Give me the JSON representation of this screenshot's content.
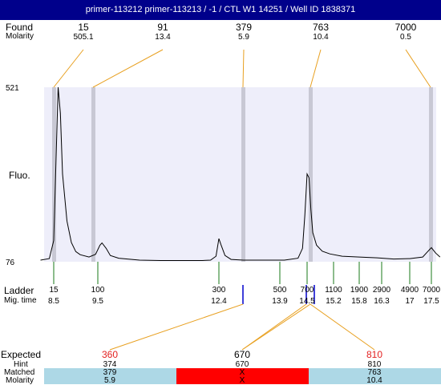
{
  "title": "primer-113212  primer-113213 / -1 / CTL W1 14251  / Well ID 1838371",
  "labels": {
    "found": "Found",
    "molarity": "Molarity",
    "fluo": "Fluo.",
    "ladder": "Ladder",
    "mig_time": "Mig. time",
    "expected": "Expected",
    "hint": "Hint",
    "matched": "Matched",
    "molarity_bottom": "Molarity"
  },
  "chart_data": {
    "type": "line",
    "y_ticks": [
      "521",
      "76"
    ],
    "ylim": [
      76,
      521
    ],
    "found": [
      {
        "size": "15",
        "molarity": "505.1"
      },
      {
        "size": "91",
        "molarity": "13.4"
      },
      {
        "size": "379",
        "molarity": "5.9"
      },
      {
        "size": "763",
        "molarity": "10.4"
      },
      {
        "size": "7000",
        "molarity": "0.5"
      }
    ],
    "ladder": [
      {
        "size": "15",
        "mig_time": "8.5"
      },
      {
        "size": "100",
        "mig_time": "9.5"
      },
      {
        "size": "300",
        "mig_time": "12.4"
      },
      {
        "size": "500",
        "mig_time": "13.9"
      },
      {
        "size": "700",
        "mig_time": "14.5"
      },
      {
        "size": "1100",
        "mig_time": "15.2"
      },
      {
        "size": "1900",
        "mig_time": "15.8"
      },
      {
        "size": "2900",
        "mig_time": "16.3"
      },
      {
        "size": "4900",
        "mig_time": "17"
      },
      {
        "size": "7000",
        "mig_time": "17.5"
      }
    ],
    "trace": [
      [
        8.2,
        80
      ],
      [
        8.4,
        84
      ],
      [
        8.5,
        130
      ],
      [
        8.55,
        330
      ],
      [
        8.6,
        521
      ],
      [
        8.65,
        455
      ],
      [
        8.7,
        300
      ],
      [
        8.8,
        180
      ],
      [
        8.9,
        125
      ],
      [
        9.0,
        102
      ],
      [
        9.1,
        94
      ],
      [
        9.3,
        88
      ],
      [
        9.45,
        95
      ],
      [
        9.55,
        118
      ],
      [
        9.6,
        124
      ],
      [
        9.7,
        110
      ],
      [
        9.8,
        92
      ],
      [
        10,
        85
      ],
      [
        10.5,
        80
      ],
      [
        11,
        79
      ],
      [
        11.5,
        79
      ],
      [
        12,
        79
      ],
      [
        12.2,
        80
      ],
      [
        12.33,
        90
      ],
      [
        12.4,
        135
      ],
      [
        12.45,
        120
      ],
      [
        12.55,
        92
      ],
      [
        12.7,
        82
      ],
      [
        13,
        80
      ],
      [
        13.5,
        80
      ],
      [
        14,
        80
      ],
      [
        14.3,
        85
      ],
      [
        14.4,
        110
      ],
      [
        14.45,
        195
      ],
      [
        14.5,
        300
      ],
      [
        14.55,
        290
      ],
      [
        14.6,
        210
      ],
      [
        14.65,
        150
      ],
      [
        14.75,
        118
      ],
      [
        14.9,
        103
      ],
      [
        15.1,
        96
      ],
      [
        15.4,
        90
      ],
      [
        15.8,
        88
      ],
      [
        16.2,
        86
      ],
      [
        16.6,
        83
      ],
      [
        17,
        84
      ],
      [
        17.3,
        88
      ],
      [
        17.4,
        100
      ],
      [
        17.5,
        112
      ],
      [
        17.6,
        98
      ],
      [
        17.7,
        88
      ]
    ],
    "assignments": [
      {
        "expected": "360",
        "hint": "374",
        "matched": "379",
        "molarity": "5.9",
        "status": "ok",
        "text_color": "#e32020"
      },
      {
        "expected": "670",
        "hint": "670",
        "matched": "X",
        "molarity": "X",
        "status": "missing",
        "text_color": "#000000"
      },
      {
        "expected": "810",
        "hint": "810",
        "matched": "763",
        "molarity": "10.4",
        "status": "ok",
        "text_color": "#e32020"
      }
    ],
    "colors": {
      "plot_bg": "#eeeefa",
      "ladder_line": "#1a7a1a",
      "found_line": "#e8a020",
      "marker_band": "#c8c8d4",
      "match_band": "#add8e6",
      "missing_band": "#ff0000",
      "mig_marker": "#0000cc",
      "title_bg": "#00008b"
    }
  }
}
